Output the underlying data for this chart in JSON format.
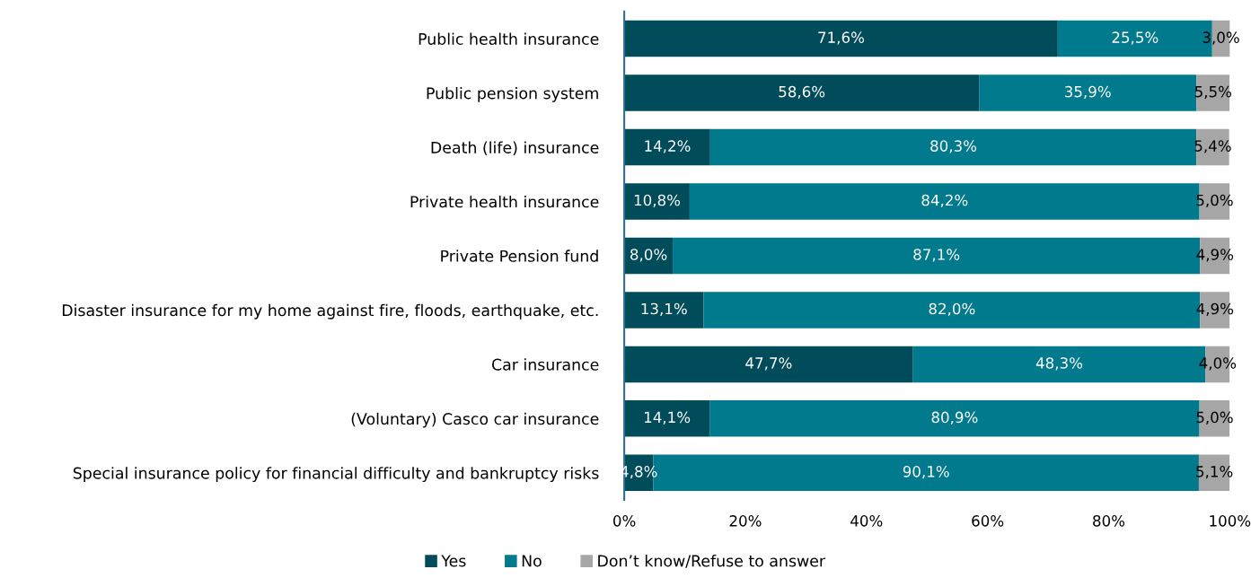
{
  "chart_data": {
    "type": "bar",
    "orientation": "horizontal",
    "stacked": true,
    "categories": [
      "Public health insurance",
      "Public pension system",
      "Death (life) insurance",
      "Private health insurance",
      "Private Pension fund",
      "Disaster insurance for my home against fire, floods, earthquake, etc.",
      "Car insurance",
      "(Voluntary) Casco car insurance",
      "Special insurance policy for financial difficulty and bankruptcy risks"
    ],
    "series": [
      {
        "name": "Yes",
        "color": "#004c5a",
        "values": [
          71.6,
          58.6,
          14.2,
          10.8,
          8.0,
          13.1,
          47.7,
          14.1,
          4.8
        ],
        "value_labels": [
          "71,6%",
          "58,6%",
          "14,2%",
          "10,8%",
          "8,0%",
          "13,1%",
          "47,7%",
          "14,1%",
          "4,8%"
        ]
      },
      {
        "name": "No",
        "color": "#007a8c",
        "values": [
          25.5,
          35.9,
          80.3,
          84.2,
          87.1,
          82.0,
          48.3,
          80.9,
          90.1
        ],
        "value_labels": [
          "25,5%",
          "35,9%",
          "80,3%",
          "84,2%",
          "87,1%",
          "82,0%",
          "48,3%",
          "80,9%",
          "90,1%"
        ]
      },
      {
        "name": "Don’t know/Refuse to answer",
        "color": "#a6a6a6",
        "values": [
          3.0,
          5.5,
          5.4,
          5.0,
          4.9,
          4.9,
          4.0,
          5.0,
          5.1
        ],
        "value_labels": [
          "3,0%",
          "5,5%",
          "5,4%",
          "5,0%",
          "4,9%",
          "4,9%",
          "4,0%",
          "5,0%",
          "5,1%"
        ]
      }
    ],
    "xlim": [
      0,
      100
    ],
    "xticks": [
      {
        "value": 0,
        "label": "0%"
      },
      {
        "value": 20,
        "label": "20%"
      },
      {
        "value": 40,
        "label": "40%"
      },
      {
        "value": 60,
        "label": "60%"
      },
      {
        "value": 80,
        "label": "80%"
      },
      {
        "value": 100,
        "label": "100%"
      }
    ],
    "grid": false,
    "legend": "bottom"
  }
}
